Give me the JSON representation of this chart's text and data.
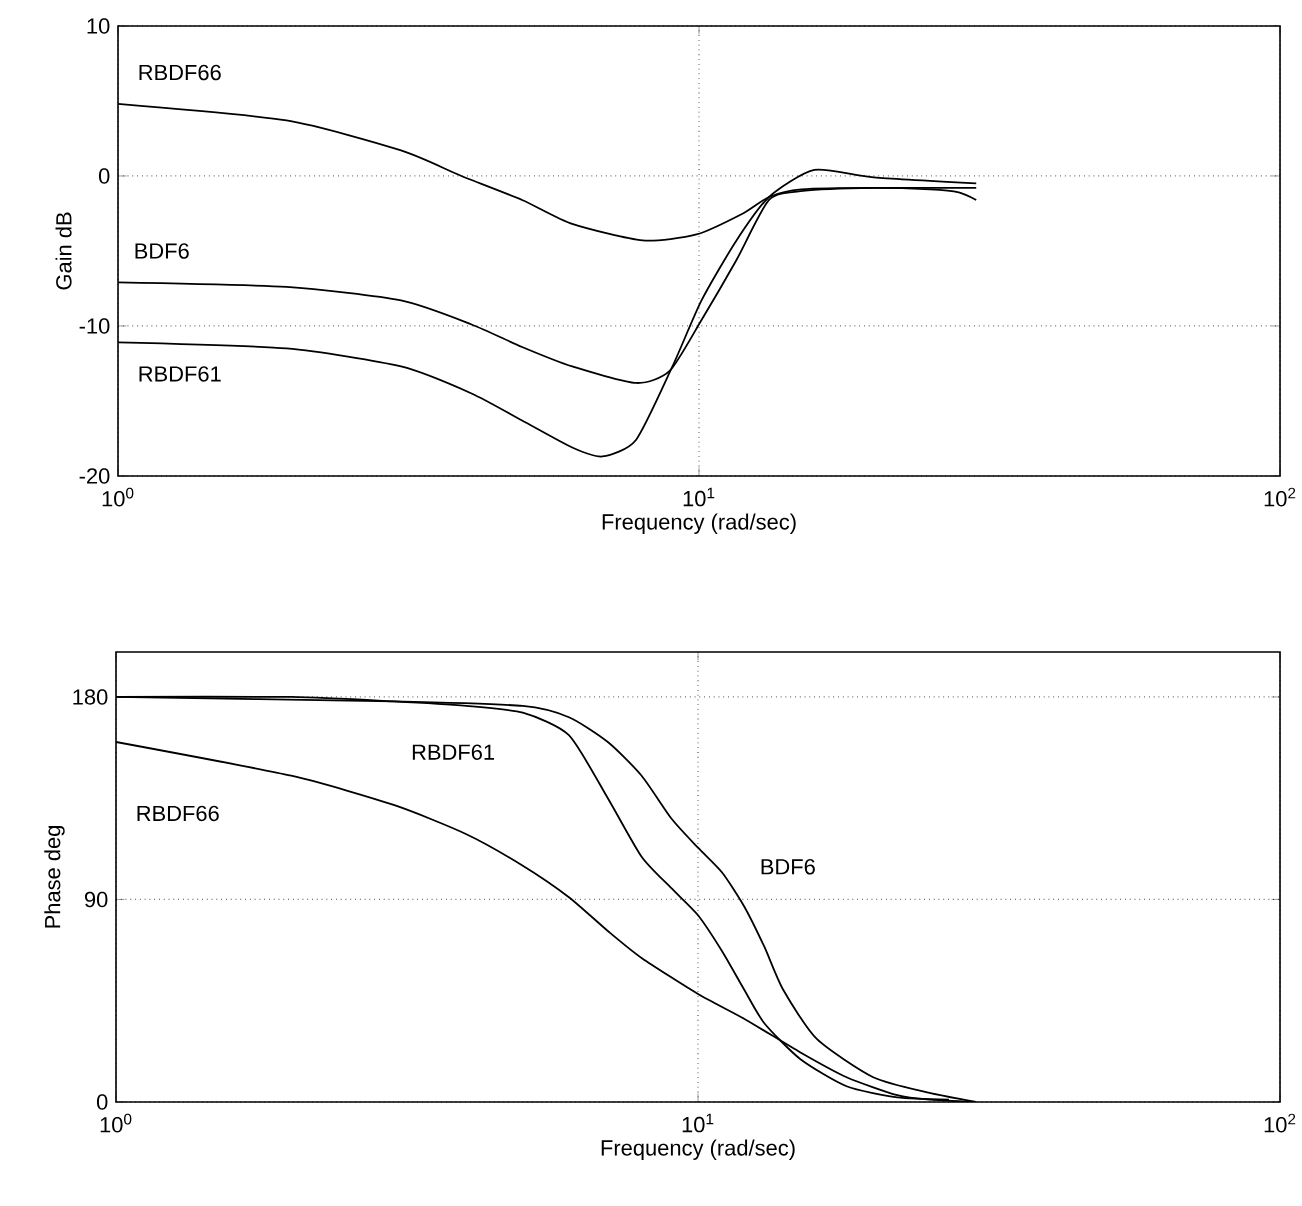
{
  "chart_data": [
    {
      "type": "line",
      "xlabel": "Frequency (rad/sec)",
      "ylabel": "Gain dB",
      "log": "x",
      "grid": true,
      "marker": "none",
      "line_style": "solid",
      "xlim": [
        1,
        100
      ],
      "xticks": [
        {
          "value": 1,
          "label": "10$^{0}$"
        },
        {
          "value": 10,
          "label": "10$^{1}$"
        },
        {
          "value": 100,
          "label": "10$^{2}$"
        }
      ],
      "ylim": [
        -20,
        10
      ],
      "yticks": [
        -20,
        -10,
        0,
        10
      ],
      "series": [
        {
          "name": "RBDF66",
          "color": "#000000",
          "x": [
            1,
            1.95,
            3.07,
            3.9,
            4.96,
            6.05,
            8.0,
            9.9,
            11.9,
            13.2,
            15,
            20,
            25,
            28,
            30
          ],
          "values": [
            4.8,
            3.7,
            1.7,
            0,
            -1.6,
            -3.2,
            -4.3,
            -3.9,
            -2.5,
            -1.4,
            -0.9,
            -0.8,
            -0.9,
            -1.1,
            -1.6
          ]
        },
        {
          "name": "BDF6",
          "color": "#000000",
          "x": [
            1,
            1.95,
            3.07,
            4.06,
            4.96,
            6.05,
            7.8,
            8.9,
            10.1,
            11.6,
            13.2,
            15.1,
            20,
            30
          ],
          "values": [
            -7.1,
            -7.4,
            -8.3,
            -9.9,
            -11.4,
            -12.7,
            -13.8,
            -13,
            -9.6,
            -5.6,
            -1.6,
            -1.0,
            -0.8,
            -0.8
          ]
        },
        {
          "name": "RBDF61",
          "color": "#000000",
          "x": [
            1,
            1.95,
            3.07,
            4.06,
            4.96,
            6.05,
            6.82,
            7.79,
            9.0,
            10.1,
            11.6,
            13.2,
            15.8,
            20,
            30
          ],
          "values": [
            -11.1,
            -11.5,
            -12.7,
            -14.5,
            -16.3,
            -18.1,
            -18.7,
            -17.6,
            -12.7,
            -8.3,
            -4.3,
            -1.4,
            0.4,
            -0.1,
            -0.5
          ]
        }
      ]
    },
    {
      "type": "line",
      "xlabel": "Frequency (rad/sec)",
      "ylabel": "Phase deg",
      "log": "x",
      "grid": true,
      "marker": "none",
      "line_style": "solid",
      "xlim": [
        1,
        100
      ],
      "xticks": [
        {
          "value": 1,
          "label": "10$^{0}$"
        },
        {
          "value": 10,
          "label": "10$^{1}$"
        },
        {
          "value": 100,
          "label": "10$^{2}$"
        }
      ],
      "ylim": [
        0,
        200
      ],
      "yticks": [
        0,
        90,
        180
      ],
      "series": [
        {
          "name": "RBDF66",
          "color": "#000000",
          "x": [
            1,
            2,
            3,
            4,
            5,
            6,
            7,
            8,
            10,
            12,
            15,
            18,
            22,
            25,
            30
          ],
          "values": [
            160,
            145,
            132,
            119,
            105,
            91,
            76,
            64,
            48,
            37,
            22,
            11,
            3,
            1,
            0
          ]
        },
        {
          "name": "RBDF61",
          "color": "#000000",
          "x": [
            1,
            2,
            3,
            4,
            5,
            6,
            7,
            8,
            9,
            10,
            11,
            12,
            13,
            15,
            18,
            22,
            27
          ],
          "values": [
            180,
            180,
            178,
            176,
            173,
            163,
            135,
            109,
            95,
            83,
            67,
            50,
            35,
            19,
            7,
            2,
            1
          ]
        },
        {
          "name": "BDF6",
          "color": "#000000",
          "x": [
            1,
            3,
            5,
            6,
            7,
            8,
            9,
            10,
            11,
            12,
            13,
            14,
            16,
            20,
            25,
            30
          ],
          "values": [
            180,
            178,
            176,
            171,
            160,
            145,
            126,
            113,
            102,
            87,
            69,
            50,
            28,
            11,
            4,
            0
          ]
        }
      ]
    }
  ]
}
